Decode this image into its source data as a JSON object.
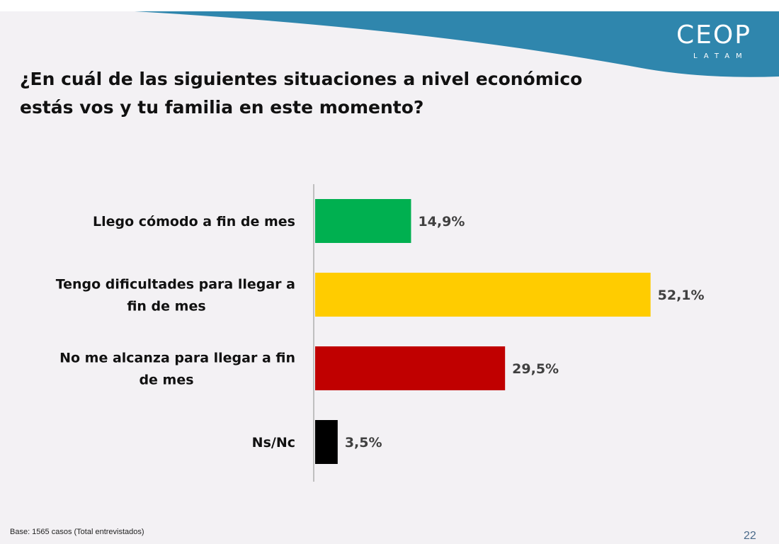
{
  "brand": {
    "name": "CEOP",
    "sub": "LATAM",
    "color": "#2f86ad"
  },
  "title": "¿En cuál de las siguientes situaciones a nivel económico estás vos y tu familia en este momento?",
  "chart_data": {
    "type": "bar",
    "orientation": "horizontal",
    "title": "",
    "categories": [
      [
        "Llego cómodo a fin de mes"
      ],
      [
        "Tengo dificultades para llegar a",
        "fin de mes"
      ],
      [
        "No me alcanza para llegar a fin",
        "de mes"
      ],
      [
        "Ns/Nc"
      ]
    ],
    "values": [
      14.9,
      52.1,
      29.5,
      3.5
    ],
    "value_labels": [
      "14,9%",
      "52,1%",
      "29,5%",
      "3,5%"
    ],
    "colors": [
      "#00b050",
      "#ffcc00",
      "#c00000",
      "#000000"
    ],
    "xlim": [
      0,
      55
    ],
    "grid": false,
    "legend": "none"
  },
  "footer": {
    "base": "Base: 1565 casos (Total entrevistados)",
    "page": "22"
  }
}
